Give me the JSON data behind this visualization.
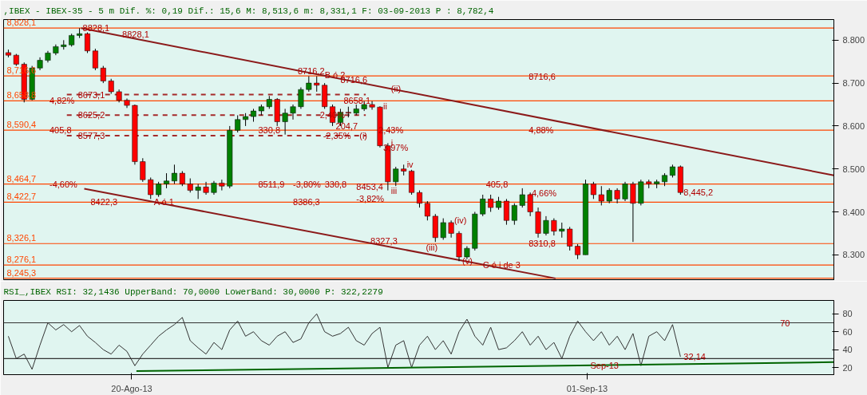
{
  "chart_data": [
    {
      "type": "candlestick",
      "title": ",IBEX - IBEX-35 -  5 m Dif. %: 0,19 Dif.: 15,6 M: 8,513,6 m: 8,331,1 F: 03-09-2013 P : 8,782,4",
      "x": [
        "2013-08-16T18:00",
        "2013-08-16T23:00",
        "2013-08-17T04:00",
        "2013-08-17T09:00",
        "2013-08-17T14:00",
        "2013-08-17T19:00",
        "2013-08-18T00:00",
        "2013-08-18T05:00",
        "2013-08-18T10:00",
        "2013-08-18T15:00",
        "2013-08-18T20:00",
        "2013-08-19T01:00",
        "2013-08-19T06:00",
        "2013-08-19T11:00",
        "2013-08-19T16:00",
        "2013-08-19T21:00",
        "2013-08-20T02:00",
        "2013-08-20T07:00",
        "2013-08-20T12:00",
        "2013-08-20T17:00",
        "2013-08-20T22:00",
        "2013-08-21T03:00",
        "2013-08-21T08:00",
        "2013-08-21T13:00",
        "2013-08-21T18:00",
        "2013-08-21T23:00",
        "2013-08-22T04:00",
        "2013-08-22T09:00",
        "2013-08-22T14:00",
        "2013-08-22T19:00",
        "2013-08-23T00:00",
        "2013-08-23T05:00",
        "2013-08-23T10:00",
        "2013-08-23T15:00",
        "2013-08-23T20:00",
        "2013-08-24T01:00",
        "2013-08-24T06:00",
        "2013-08-24T11:00",
        "2013-08-24T16:00",
        "2013-08-24T21:00",
        "2013-08-25T02:00",
        "2013-08-25T07:00",
        "2013-08-25T12:00",
        "2013-08-25T17:00",
        "2013-08-25T22:00",
        "2013-08-26T03:00",
        "2013-08-26T08:00",
        "2013-08-26T13:00",
        "2013-08-26T18:00",
        "2013-08-26T23:00",
        "2013-08-27T04:00",
        "2013-08-27T09:00",
        "2013-08-27T14:00",
        "2013-08-27T19:00",
        "2013-08-28T00:00",
        "2013-08-28T05:00",
        "2013-08-28T10:00",
        "2013-08-28T15:00",
        "2013-08-28T20:00",
        "2013-08-29T01:00",
        "2013-08-29T06:00",
        "2013-08-29T11:00",
        "2013-08-29T16:00",
        "2013-08-29T21:00",
        "2013-08-30T02:00",
        "2013-08-30T07:00",
        "2013-08-30T12:00",
        "2013-08-30T17:00",
        "2013-08-30T22:00",
        "2013-08-31T03:00",
        "2013-08-31T08:00",
        "2013-08-31T13:00",
        "2013-08-31T18:00",
        "2013-08-31T23:00",
        "2013-09-01T04:00",
        "2013-09-01T09:00",
        "2013-09-01T14:00",
        "2013-09-01T19:00",
        "2013-09-02T00:00",
        "2013-09-02T05:00",
        "2013-09-02T10:00",
        "2013-09-02T15:00",
        "2013-09-02T20:00",
        "2013-09-03T01:00",
        "2013-09-03T06:00",
        "2013-09-03T11:00"
      ],
      "ohlc": [
        [
          8771,
          8778,
          8760,
          8765
        ],
        [
          8765,
          8768,
          8740,
          8744
        ],
        [
          8744,
          8748,
          8655,
          8662
        ],
        [
          8662,
          8740,
          8660,
          8735
        ],
        [
          8735,
          8760,
          8730,
          8753
        ],
        [
          8753,
          8775,
          8748,
          8770
        ],
        [
          8770,
          8790,
          8765,
          8785
        ],
        [
          8785,
          8800,
          8778,
          8789
        ],
        [
          8789,
          8815,
          8785,
          8811
        ],
        [
          8811,
          8828,
          8805,
          8815
        ],
        [
          8815,
          8818,
          8770,
          8775
        ],
        [
          8775,
          8780,
          8730,
          8735
        ],
        [
          8735,
          8740,
          8700,
          8705
        ],
        [
          8705,
          8710,
          8675,
          8680
        ],
        [
          8680,
          8685,
          8655,
          8660
        ],
        [
          8660,
          8664,
          8642,
          8648
        ],
        [
          8648,
          8650,
          8510,
          8517
        ],
        [
          8517,
          8525,
          8470,
          8475
        ],
        [
          8475,
          8480,
          8430,
          8440
        ],
        [
          8440,
          8470,
          8435,
          8465
        ],
        [
          8465,
          8490,
          8455,
          8472
        ],
        [
          8472,
          8510,
          8465,
          8490
        ],
        [
          8490,
          8495,
          8460,
          8465
        ],
        [
          8465,
          8478,
          8445,
          8450
        ],
        [
          8450,
          8465,
          8430,
          8458
        ],
        [
          8458,
          8470,
          8440,
          8445
        ],
        [
          8445,
          8472,
          8440,
          8467
        ],
        [
          8467,
          8475,
          8450,
          8460
        ],
        [
          8460,
          8600,
          8455,
          8590
        ],
        [
          8590,
          8625,
          8585,
          8615
        ],
        [
          8615,
          8630,
          8600,
          8622
        ],
        [
          8622,
          8640,
          8610,
          8635
        ],
        [
          8635,
          8650,
          8625,
          8645
        ],
        [
          8645,
          8670,
          8640,
          8662
        ],
        [
          8662,
          8665,
          8600,
          8610
        ],
        [
          8610,
          8640,
          8580,
          8630
        ],
        [
          8630,
          8650,
          8615,
          8645
        ],
        [
          8645,
          8690,
          8640,
          8685
        ],
        [
          8685,
          8716,
          8680,
          8700
        ],
        [
          8700,
          8716,
          8680,
          8695
        ],
        [
          8695,
          8700,
          8640,
          8645
        ],
        [
          8645,
          8650,
          8600,
          8608
        ],
        [
          8608,
          8640,
          8600,
          8632
        ],
        [
          8632,
          8645,
          8620,
          8630
        ],
        [
          8630,
          8650,
          8625,
          8640
        ],
        [
          8640,
          8658,
          8635,
          8650
        ],
        [
          8650,
          8658,
          8638,
          8644
        ],
        [
          8644,
          8646,
          8550,
          8554
        ],
        [
          8554,
          8560,
          8450,
          8470
        ],
        [
          8470,
          8505,
          8460,
          8500
        ],
        [
          8500,
          8510,
          8485,
          8495
        ],
        [
          8495,
          8498,
          8440,
          8445
        ],
        [
          8445,
          8450,
          8410,
          8420
        ],
        [
          8420,
          8425,
          8380,
          8390
        ],
        [
          8390,
          8395,
          8330,
          8340
        ],
        [
          8340,
          8385,
          8335,
          8375
        ],
        [
          8375,
          8380,
          8340,
          8350
        ],
        [
          8350,
          8355,
          8285,
          8295
        ],
        [
          8295,
          8320,
          8290,
          8315
        ],
        [
          8315,
          8400,
          8310,
          8395
        ],
        [
          8395,
          8440,
          8390,
          8430
        ],
        [
          8430,
          8440,
          8400,
          8410
        ],
        [
          8410,
          8435,
          8405,
          8425
        ],
        [
          8425,
          8430,
          8370,
          8380
        ],
        [
          8380,
          8420,
          8370,
          8415
        ],
        [
          8415,
          8455,
          8410,
          8440
        ],
        [
          8440,
          8445,
          8390,
          8400
        ],
        [
          8400,
          8410,
          8340,
          8350
        ],
        [
          8350,
          8390,
          8345,
          8380
        ],
        [
          8380,
          8385,
          8345,
          8355
        ],
        [
          8355,
          8375,
          8340,
          8360
        ],
        [
          8360,
          8365,
          8310,
          8320
        ],
        [
          8320,
          8325,
          8290,
          8300
        ],
        [
          8300,
          8475,
          8300,
          8465
        ],
        [
          8465,
          8470,
          8430,
          8440
        ],
        [
          8440,
          8460,
          8415,
          8425
        ],
        [
          8425,
          8455,
          8420,
          8450
        ],
        [
          8450,
          8455,
          8420,
          8430
        ],
        [
          8430,
          8470,
          8425,
          8465
        ],
        [
          8465,
          8470,
          8330,
          8420
        ],
        [
          8420,
          8475,
          8415,
          8470
        ],
        [
          8470,
          8475,
          8455,
          8465
        ],
        [
          8465,
          8475,
          8455,
          8470
        ],
        [
          8470,
          8490,
          8460,
          8485
        ],
        [
          8485,
          8510,
          8480,
          8505
        ],
        [
          8505,
          8508,
          8440,
          8445
        ]
      ],
      "series": [
        {
          "type": "line",
          "color": "#8b1a1a",
          "x": [
            "2013-08-18T16:00",
            "2013-09-07T12:00"
          ],
          "values": [
            8828,
            8485
          ]
        },
        {
          "type": "line",
          "color": "#8b1a1a",
          "x": [
            "2013-08-18T18:00",
            "2013-08-31T04:00"
          ],
          "values": [
            8454,
            8245
          ]
        },
        {
          "type": "line",
          "color": "#a52a2a",
          "line_style": "dashed",
          "x": [
            "2013-08-18T07:00",
            "2013-08-26T04:00"
          ],
          "values": [
            8673.1,
            8673.1
          ]
        },
        {
          "type": "line",
          "color": "#a52a2a",
          "line_style": "dashed",
          "x": [
            "2013-08-18T07:00",
            "2013-08-26T04:00"
          ],
          "values": [
            8625.2,
            8625.2
          ]
        },
        {
          "type": "line",
          "color": "#a52a2a",
          "line_style": "dashed",
          "x": [
            "2013-08-18T07:00",
            "2013-08-26T04:00"
          ],
          "values": [
            8577.3,
            8577.3
          ]
        }
      ],
      "ref_lines": [
        {
          "axis": "y",
          "value": 8828.1,
          "label": "8,828,1",
          "color": "#ff4500"
        },
        {
          "axis": "y",
          "value": 8716.6,
          "label": "8,716,6",
          "color": "#ff4500"
        },
        {
          "axis": "y",
          "value": 8658.8,
          "label": "8,658,8",
          "color": "#ff4500"
        },
        {
          "axis": "y",
          "value": 8590.4,
          "label": "8,590,4",
          "color": "#ff4500"
        },
        {
          "axis": "y",
          "value": 8464.7,
          "label": "8,464,7",
          "color": "#ff4500"
        },
        {
          "axis": "y",
          "value": 8422.7,
          "label": "8,422,7",
          "color": "#ff4500"
        },
        {
          "axis": "y",
          "value": 8326.1,
          "label": "8,326,1",
          "color": "#ff4500"
        },
        {
          "axis": "y",
          "value": 8276.1,
          "label": "8,276,1",
          "color": "#ff4500"
        },
        {
          "axis": "y",
          "value": 8245.3,
          "label": "8,245,3",
          "color": "#ff4500"
        }
      ],
      "annotations": [
        {
          "text": "8828,1",
          "x": "2013-08-18T15:00",
          "y": 8828
        },
        {
          "text": "8828,1",
          "x": "2013-08-19T16:00",
          "y": 8813
        },
        {
          "text": "4,82%",
          "x": "2013-08-17T18:00",
          "y": 8658.8
        },
        {
          "text": "8673,1",
          "x": "2013-08-18T12:00",
          "y": 8673.1
        },
        {
          "text": "8625,2",
          "x": "2013-08-18T12:00",
          "y": 8625.2
        },
        {
          "text": "8577,3",
          "x": "2013-08-18T12:00",
          "y": 8577.3
        },
        {
          "text": "405,8",
          "x": "2013-08-17T18:00",
          "y": 8590.4
        },
        {
          "text": "-4,60%",
          "x": "2013-08-17T18:00",
          "y": 8464.7
        },
        {
          "text": "8422,3",
          "x": "2013-08-18T20:00",
          "y": 8422.7
        },
        {
          "text": "330,8",
          "x": "2013-08-23T06:00",
          "y": 8590.4
        },
        {
          "text": "8716,2",
          "x": "2013-08-24T07:00",
          "y": 8728
        },
        {
          "text": "8716,6",
          "x": "2013-08-25T10:00",
          "y": 8708
        },
        {
          "text": "B ó 2",
          "x": "2013-08-25T00:00",
          "y": 8718
        },
        {
          "text": "2,40%",
          "x": "2013-08-24T21:00",
          "y": 8625.2
        },
        {
          "text": "-2,35%",
          "x": "2013-08-24T23:00",
          "y": 8578
        },
        {
          "text": "(i)",
          "x": "2013-08-25T22:00",
          "y": 8577.3
        },
        {
          "text": "204,7",
          "x": "2013-08-25T07:00",
          "y": 8600
        },
        {
          "text": "3,97%",
          "x": "2013-08-26T13:00",
          "y": 8550
        },
        {
          "text": "2,43%",
          "x": "2013-08-26T10:00",
          "y": 8590
        },
        {
          "text": "(ii)",
          "x": "2013-08-26T18:00",
          "y": 8688
        },
        {
          "text": "8658,1",
          "x": "2013-08-25T12:00",
          "y": 8658.8
        },
        {
          "text": "i",
          "x": "2013-08-26T18:00",
          "y": 8560
        },
        {
          "text": "ii",
          "x": "2013-08-26T13:00",
          "y": 8646
        },
        {
          "text": "iii",
          "x": "2013-08-26T18:00",
          "y": 8450
        },
        {
          "text": "iv",
          "x": "2013-08-27T04:00",
          "y": 8510
        },
        {
          "text": "8511,9",
          "x": "2013-08-23T06:00",
          "y": 8464.7
        },
        {
          "text": "-3,80%",
          "x": "2013-08-24T04:00",
          "y": 8464.7
        },
        {
          "text": "330,8",
          "x": "2013-08-25T00:00",
          "y": 8464.7
        },
        {
          "text": "8453,4",
          "x": "2013-08-25T20:00",
          "y": 8458
        },
        {
          "text": "-3,82%",
          "x": "2013-08-25T20:00",
          "y": 8430
        },
        {
          "text": "8386,3",
          "x": "2013-08-24T04:00",
          "y": 8422.7
        },
        {
          "text": "8327,3",
          "x": "2013-08-26T05:00",
          "y": 8333
        },
        {
          "text": "(iii)",
          "x": "2013-08-27T16:00",
          "y": 8317
        },
        {
          "text": "(iv)",
          "x": "2013-08-28T10:00",
          "y": 8380
        },
        {
          "text": "(v)",
          "x": "2013-08-28T15:00",
          "y": 8285
        },
        {
          "text": "C ó i de 3",
          "x": "2013-08-29T04:00",
          "y": 8276.1
        },
        {
          "text": "A ó 1",
          "x": "2013-08-20T12:00",
          "y": 8424
        },
        {
          "text": "8716,6",
          "x": "2013-08-30T09:00",
          "y": 8716
        },
        {
          "text": "4,88%",
          "x": "2013-08-30T09:00",
          "y": 8590.4
        },
        {
          "text": "405,8",
          "x": "2013-08-29T06:00",
          "y": 8464.7
        },
        {
          "text": "-4,66%",
          "x": "2013-08-30T09:00",
          "y": 8444
        },
        {
          "text": "8310,8",
          "x": "2013-08-30T09:00",
          "y": 8326.1
        },
        {
          "text": "8,445,2",
          "x": "2013-09-03T11:00",
          "y": 8445
        }
      ],
      "xlim": [
        "2013-08-16T15:00",
        "2013-09-07T12:00"
      ],
      "ylim": [
        8242,
        8848
      ],
      "yticks": [
        {
          "value": 8300,
          "label": "8.300"
        },
        {
          "value": 8400,
          "label": "8.400"
        },
        {
          "value": 8500,
          "label": "8.500"
        },
        {
          "value": 8600,
          "label": "8.600"
        },
        {
          "value": 8700,
          "label": "8.700"
        },
        {
          "value": 8800,
          "label": "8.800"
        }
      ],
      "tick_labels": "y",
      "grid": false
    },
    {
      "type": "line",
      "title": "RSI_,IBEX RSI: 32,1436 UpperBand: 70,0000 LowerBand: 30,0000 P: 322,2279",
      "series": [
        {
          "color": "#333333",
          "x": [
            "2013-08-16T18:00",
            "2013-08-16T23:00",
            "2013-08-17T04:00",
            "2013-08-17T09:00",
            "2013-08-17T14:00",
            "2013-08-17T19:00",
            "2013-08-18T00:00",
            "2013-08-18T05:00",
            "2013-08-18T10:00",
            "2013-08-18T15:00",
            "2013-08-18T20:00",
            "2013-08-19T01:00",
            "2013-08-19T06:00",
            "2013-08-19T11:00",
            "2013-08-19T16:00",
            "2013-08-19T21:00",
            "2013-08-20T02:00",
            "2013-08-20T07:00",
            "2013-08-20T12:00",
            "2013-08-20T17:00",
            "2013-08-20T22:00",
            "2013-08-21T03:00",
            "2013-08-21T08:00",
            "2013-08-21T13:00",
            "2013-08-21T18:00",
            "2013-08-21T23:00",
            "2013-08-22T04:00",
            "2013-08-22T09:00",
            "2013-08-22T14:00",
            "2013-08-22T19:00",
            "2013-08-23T00:00",
            "2013-08-23T05:00",
            "2013-08-23T10:00",
            "2013-08-23T15:00",
            "2013-08-23T20:00",
            "2013-08-24T01:00",
            "2013-08-24T06:00",
            "2013-08-24T11:00",
            "2013-08-24T16:00",
            "2013-08-24T21:00",
            "2013-08-25T02:00",
            "2013-08-25T07:00",
            "2013-08-25T12:00",
            "2013-08-25T17:00",
            "2013-08-25T22:00",
            "2013-08-26T03:00",
            "2013-08-26T08:00",
            "2013-08-26T13:00",
            "2013-08-26T18:00",
            "2013-08-26T23:00",
            "2013-08-27T04:00",
            "2013-08-27T09:00",
            "2013-08-27T14:00",
            "2013-08-27T19:00",
            "2013-08-28T00:00",
            "2013-08-28T05:00",
            "2013-08-28T10:00",
            "2013-08-28T15:00",
            "2013-08-28T20:00",
            "2013-08-29T01:00",
            "2013-08-29T06:00",
            "2013-08-29T11:00",
            "2013-08-29T16:00",
            "2013-08-29T21:00",
            "2013-08-30T02:00",
            "2013-08-30T07:00",
            "2013-08-30T12:00",
            "2013-08-30T17:00",
            "2013-08-30T22:00",
            "2013-08-31T03:00",
            "2013-08-31T08:00",
            "2013-08-31T13:00",
            "2013-08-31T18:00",
            "2013-08-31T23:00",
            "2013-09-01T04:00",
            "2013-09-01T09:00",
            "2013-09-01T14:00",
            "2013-09-01T19:00",
            "2013-09-02T00:00",
            "2013-09-02T05:00",
            "2013-09-02T10:00",
            "2013-09-02T15:00",
            "2013-09-02T20:00",
            "2013-09-03T01:00",
            "2013-09-03T06:00",
            "2013-09-03T11:00"
          ],
          "values": [
            55,
            30,
            35,
            18,
            45,
            70,
            62,
            68,
            60,
            67,
            55,
            48,
            40,
            35,
            45,
            38,
            22,
            35,
            45,
            55,
            62,
            68,
            76,
            50,
            42,
            35,
            48,
            40,
            62,
            72,
            55,
            60,
            50,
            45,
            55,
            60,
            48,
            52,
            70,
            80,
            60,
            55,
            58,
            65,
            50,
            45,
            58,
            65,
            20,
            45,
            50,
            20,
            45,
            55,
            40,
            50,
            35,
            60,
            74,
            55,
            45,
            65,
            40,
            42,
            50,
            60,
            45,
            55,
            40,
            48,
            30,
            55,
            72,
            60,
            50,
            60,
            45,
            55,
            40,
            58,
            22,
            55,
            60,
            50,
            68,
            32
          ]
        },
        {
          "color": "#006400",
          "x": [
            "2013-08-20T03:00",
            "2013-09-07T12:00"
          ],
          "values": [
            16,
            26
          ]
        }
      ],
      "ref_lines": [
        {
          "axis": "y",
          "value": 70,
          "color": "#333333"
        },
        {
          "axis": "y",
          "value": 30,
          "color": "#333333"
        }
      ],
      "annotations": [
        {
          "text": "Sep-13",
          "x": "2013-09-01T00:00",
          "y": 22
        },
        {
          "text": "70",
          "x": "2013-09-06T00:00",
          "y": 70
        },
        {
          "text": "32,14",
          "x": "2013-09-03T11:00",
          "y": 32
        }
      ],
      "xlim": [
        "2013-08-16T15:00",
        "2013-09-07T12:00"
      ],
      "ylim": [
        12,
        95
      ],
      "xticks": [
        {
          "value": "2013-08-20",
          "label": "20-Ago-13"
        },
        {
          "value": "2013-09-01",
          "label": "01-Sep-13"
        }
      ],
      "yticks": [
        20,
        40,
        60,
        80
      ],
      "grid": false
    }
  ]
}
